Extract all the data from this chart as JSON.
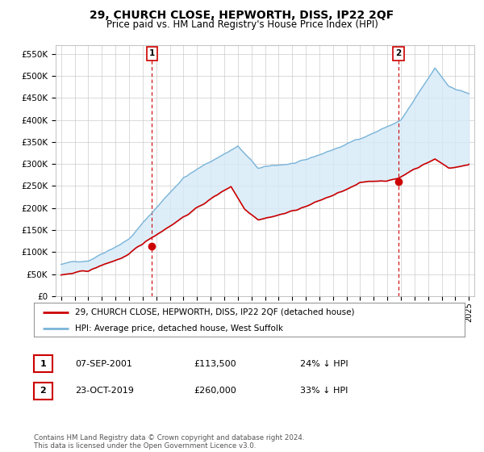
{
  "title": "29, CHURCH CLOSE, HEPWORTH, DISS, IP22 2QF",
  "subtitle": "Price paid vs. HM Land Registry's House Price Index (HPI)",
  "title_fontsize": 10,
  "subtitle_fontsize": 8.5,
  "ylim": [
    0,
    570000
  ],
  "yticks": [
    0,
    50000,
    100000,
    150000,
    200000,
    250000,
    300000,
    350000,
    400000,
    450000,
    500000,
    550000
  ],
  "ytick_labels": [
    "£0",
    "£50K",
    "£100K",
    "£150K",
    "£200K",
    "£250K",
    "£300K",
    "£350K",
    "£400K",
    "£450K",
    "£500K",
    "£550K"
  ],
  "hpi_color": "#7ab4d8",
  "hpi_fill_color": "#d6eaf8",
  "price_color": "#cc0000",
  "vline_color": "#cc0000",
  "transaction1_date": 2001.68,
  "transaction1_price": 113500,
  "transaction1_label": "1",
  "transaction2_date": 2019.81,
  "transaction2_price": 260000,
  "transaction2_label": "2",
  "legend_line1": "29, CHURCH CLOSE, HEPWORTH, DISS, IP22 2QF (detached house)",
  "legend_line2": "HPI: Average price, detached house, West Suffolk",
  "table_row1": [
    "1",
    "07-SEP-2001",
    "£113,500",
    "24% ↓ HPI"
  ],
  "table_row2": [
    "2",
    "23-OCT-2019",
    "£260,000",
    "33% ↓ HPI"
  ],
  "footer": "Contains HM Land Registry data © Crown copyright and database right 2024.\nThis data is licensed under the Open Government Licence v3.0.",
  "background_color": "#ffffff",
  "grid_color": "#cccccc"
}
